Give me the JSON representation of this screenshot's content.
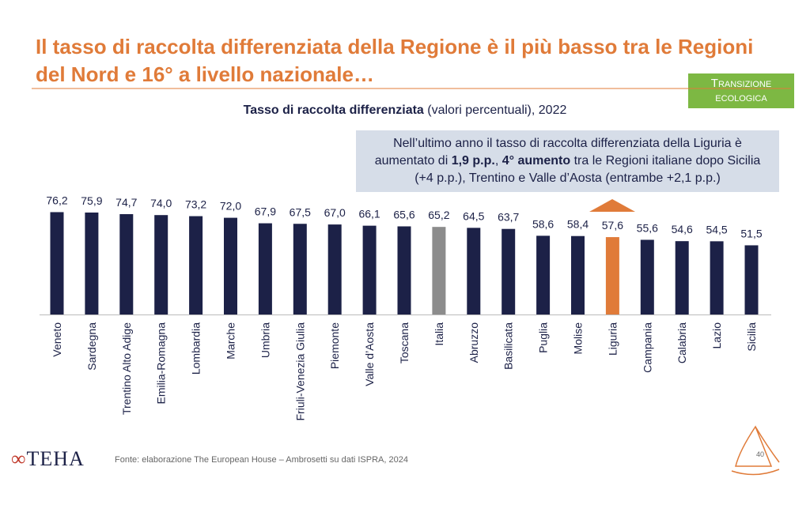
{
  "slide": {
    "title": [
      "Il tasso di raccolta differenziata della Regione è il più basso tra le Regioni",
      "del Nord e 16° a livello nazionale…"
    ],
    "badge": "Transizione ecologica",
    "callout": [
      {
        "text": "Nell’ultimo anno il tasso di raccolta differenziata della Liguria è aumentato di ",
        "bold": false
      },
      {
        "text": "1,9 p.p.",
        "bold": true
      },
      {
        "text": ", ",
        "bold": false
      },
      {
        "text": "4° aumento",
        "bold": true
      },
      {
        "text": " tra le Regioni italiane dopo Sicilia (+4 p.p.), Trentino e Valle d’Aosta (entrambe +2,1 p.p.)",
        "bold": false
      }
    ],
    "logo": "TEHA",
    "source": "Fonte: elaborazione The European House – Ambrosetti su dati ISPRA, 2024",
    "page": "40"
  },
  "chart_data": {
    "type": "bar",
    "title_bold": "Tasso di raccolta differenziata",
    "title_rest": " (valori percentuali), 2022",
    "categories": [
      "Veneto",
      "Sardegna",
      "Trentino Alto Adige",
      "Emilia-Romagna",
      "Lombardia",
      "Marche",
      "Umbria",
      "Friuli-Venezia Giulia",
      "Piemonte",
      "Valle d’Aosta",
      "Toscana",
      "Italia",
      "Abruzzo",
      "Basilicata",
      "Puglia",
      "Molise",
      "Liguria",
      "Campania",
      "Calabria",
      "Lazio",
      "Sicilia"
    ],
    "values": [
      76.2,
      75.9,
      74.7,
      74.0,
      73.2,
      72.0,
      67.9,
      67.5,
      67.0,
      66.1,
      65.6,
      65.2,
      64.5,
      63.7,
      58.6,
      58.4,
      57.6,
      55.6,
      54.6,
      54.5,
      51.5
    ],
    "value_labels": [
      "76,2",
      "75,9",
      "74,7",
      "74,0",
      "73,2",
      "72,0",
      "67,9",
      "67,5",
      "67,0",
      "66,1",
      "65,6",
      "65,2",
      "64,5",
      "63,7",
      "58,6",
      "58,4",
      "57,6",
      "55,6",
      "54,6",
      "54,5",
      "51,5"
    ],
    "colors": [
      "#1c2147",
      "#1c2147",
      "#1c2147",
      "#1c2147",
      "#1c2147",
      "#1c2147",
      "#1c2147",
      "#1c2147",
      "#1c2147",
      "#1c2147",
      "#1c2147",
      "#8c8c8c",
      "#1c2147",
      "#1c2147",
      "#1c2147",
      "#1c2147",
      "#e07b39",
      "#1c2147",
      "#1c2147",
      "#1c2147",
      "#1c2147"
    ]
  }
}
